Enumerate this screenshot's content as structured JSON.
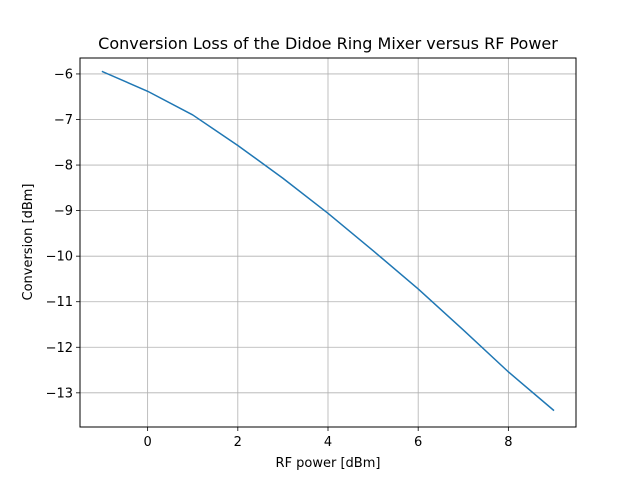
{
  "chart_data": {
    "type": "line",
    "title": "Conversion Loss of the Didoe Ring Mixer versus RF Power",
    "xlabel": "RF power [dBm]",
    "ylabel": "Conversion [dBm]",
    "xlim": [
      -1.5,
      9.5
    ],
    "ylim": [
      -13.75,
      -5.65
    ],
    "xticks": [
      0,
      2,
      4,
      6,
      8
    ],
    "yticks": [
      -13,
      -12,
      -11,
      -10,
      -9,
      -8,
      -7,
      -6
    ],
    "xtick_labels": [
      "0",
      "2",
      "4",
      "6",
      "8"
    ],
    "ytick_labels": [
      "−13",
      "−12",
      "−11",
      "−10",
      "−9",
      "−8",
      "−7",
      "−6"
    ],
    "grid": true,
    "series": [
      {
        "color": "#1f77b4",
        "x": [
          -1,
          0,
          1,
          2,
          3,
          4,
          5,
          6,
          7,
          8,
          9
        ],
        "y": [
          -5.95,
          -6.38,
          -6.9,
          -7.57,
          -8.29,
          -9.06,
          -9.88,
          -10.72,
          -11.62,
          -12.54,
          -13.38
        ]
      }
    ]
  }
}
